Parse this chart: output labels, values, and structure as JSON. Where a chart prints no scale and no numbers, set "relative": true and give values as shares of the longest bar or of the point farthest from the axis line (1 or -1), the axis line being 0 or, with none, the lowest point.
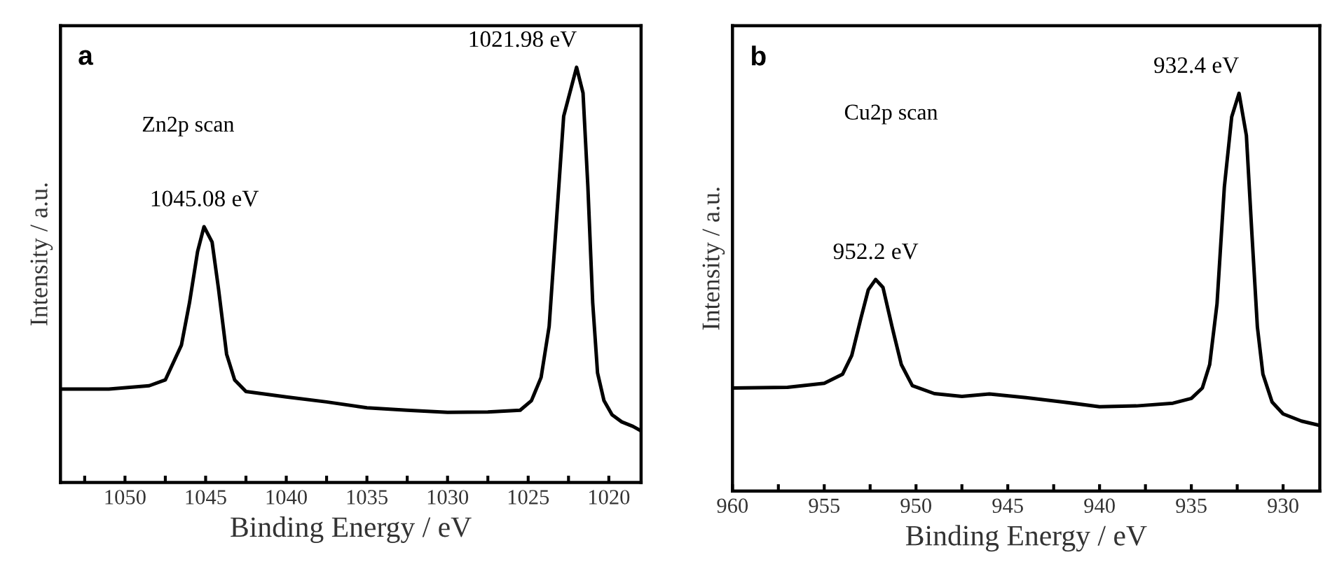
{
  "chart_data": [
    {
      "type": "line",
      "relative": true,
      "xlabel": "Binding Energy / eV",
      "ylabel": "Intensity / a.u.",
      "xlim": [
        1054,
        1018
      ],
      "xticks": [
        {
          "value": 1052.5,
          "label": null
        },
        1050,
        {
          "value": 1047.5,
          "label": null
        },
        1045,
        {
          "value": 1042.5,
          "label": null
        },
        1040,
        {
          "value": 1037.5,
          "label": null
        },
        1035,
        {
          "value": 1032.5,
          "label": null
        },
        1030,
        {
          "value": 1027.5,
          "label": null
        },
        1025,
        {
          "value": 1022.5,
          "label": null
        },
        1020
      ],
      "tick_labels": "x",
      "grid": false,
      "legend": false,
      "marker": "none",
      "line_style": "solid",
      "annotations": [
        "a",
        "Zn2p scan",
        {
          "text": "1045.08 eV",
          "x": 1045.08,
          "y": 0.616
        },
        {
          "text": "1021.98 eV",
          "x": 1021.98,
          "y": 1.0
        }
      ],
      "series": [
        {
          "color": "#000000",
          "x": [
            1054,
            1051,
            1048.5,
            1047.5,
            1046.5,
            1046,
            1045.5,
            1045.1,
            1044.6,
            1044.2,
            1043.7,
            1043.2,
            1042.5,
            1040,
            1037.5,
            1035,
            1032.5,
            1030,
            1027.5,
            1025.5,
            1024.8,
            1024.2,
            1023.7,
            1023.3,
            1022.8,
            1022.0,
            1021.6,
            1021.3,
            1021.0,
            1020.7,
            1020.3,
            1019.8,
            1019.2,
            1018.5,
            1018.0
          ],
          "values": [
            0.225,
            0.225,
            0.233,
            0.247,
            0.331,
            0.433,
            0.556,
            0.616,
            0.579,
            0.466,
            0.309,
            0.247,
            0.219,
            0.206,
            0.194,
            0.18,
            0.174,
            0.169,
            0.17,
            0.174,
            0.197,
            0.253,
            0.376,
            0.601,
            0.882,
            1.0,
            0.938,
            0.713,
            0.433,
            0.264,
            0.197,
            0.163,
            0.146,
            0.135,
            0.124
          ]
        }
      ]
    },
    {
      "type": "line",
      "relative": true,
      "xlabel": "Binding Energy / eV",
      "ylabel": "Intensity / a.u.",
      "xlim": [
        960,
        928
      ],
      "xticks": [
        960,
        {
          "value": 957.5,
          "label": null
        },
        955,
        {
          "value": 952.5,
          "label": null
        },
        950,
        {
          "value": 947.5,
          "label": null
        },
        945,
        {
          "value": 942.5,
          "label": null
        },
        940,
        {
          "value": 937.5,
          "label": null
        },
        935,
        {
          "value": 932.5,
          "label": null
        },
        930
      ],
      "tick_labels": "x",
      "grid": false,
      "legend": false,
      "marker": "none",
      "line_style": "solid",
      "annotations": [
        "b",
        "Cu2p scan",
        {
          "text": "952.2 eV",
          "x": 952.2,
          "y": 0.532
        },
        {
          "text": "932.4 eV",
          "x": 932.4,
          "y": 1.0
        }
      ],
      "series": [
        {
          "color": "#000000",
          "x": [
            960,
            957,
            955,
            954,
            953.5,
            953,
            952.6,
            952.2,
            951.8,
            951.3,
            950.8,
            950.2,
            949,
            947.5,
            946,
            944,
            942,
            940,
            938,
            936,
            935,
            934.4,
            934,
            933.6,
            933.2,
            932.8,
            932.4,
            932.0,
            931.7,
            931.4,
            931.1,
            930.6,
            930,
            929,
            928
          ],
          "values": [
            0.259,
            0.261,
            0.271,
            0.294,
            0.341,
            0.435,
            0.506,
            0.532,
            0.512,
            0.412,
            0.318,
            0.265,
            0.245,
            0.238,
            0.244,
            0.235,
            0.224,
            0.212,
            0.214,
            0.221,
            0.233,
            0.259,
            0.318,
            0.471,
            0.765,
            0.941,
            1.0,
            0.894,
            0.647,
            0.412,
            0.294,
            0.224,
            0.194,
            0.176,
            0.165
          ]
        }
      ]
    }
  ]
}
